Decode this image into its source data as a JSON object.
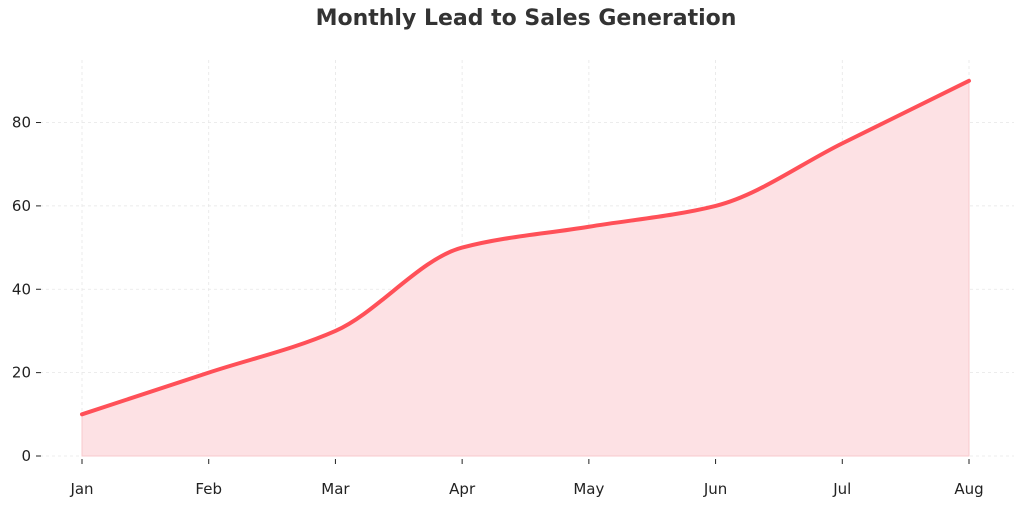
{
  "chart_data": {
    "type": "area",
    "title": "Monthly Lead to Sales Generation",
    "xlabel": "",
    "ylabel": "",
    "categories": [
      "Jan",
      "Feb",
      "Mar",
      "Apr",
      "May",
      "Jun",
      "Jul",
      "Aug"
    ],
    "series": [
      {
        "values": [
          10,
          20,
          30,
          50,
          55,
          60,
          75,
          90
        ]
      }
    ],
    "ylim": [
      0,
      95
    ],
    "yticks": [
      0,
      20,
      40,
      60,
      80
    ],
    "grid": true,
    "legend": "none",
    "colors": {
      "line": "#ff5058",
      "fill": "#fde1e4",
      "grid": "#e6e6e6",
      "axis": "#222222"
    }
  }
}
